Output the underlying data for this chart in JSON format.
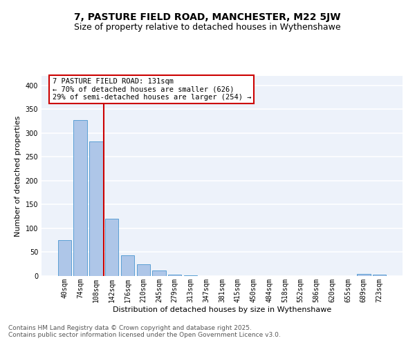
{
  "title": "7, PASTURE FIELD ROAD, MANCHESTER, M22 5JW",
  "subtitle": "Size of property relative to detached houses in Wythenshawe",
  "xlabel": "Distribution of detached houses by size in Wythenshawe",
  "ylabel": "Number of detached properties",
  "categories": [
    "40sqm",
    "74sqm",
    "108sqm",
    "142sqm",
    "176sqm",
    "210sqm",
    "245sqm",
    "279sqm",
    "313sqm",
    "347sqm",
    "381sqm",
    "415sqm",
    "450sqm",
    "484sqm",
    "518sqm",
    "552sqm",
    "586sqm",
    "620sqm",
    "655sqm",
    "689sqm",
    "723sqm"
  ],
  "values": [
    75,
    328,
    283,
    120,
    43,
    24,
    12,
    3,
    1,
    0,
    0,
    0,
    0,
    0,
    0,
    0,
    0,
    0,
    0,
    5,
    3
  ],
  "bar_color": "#aec6e8",
  "bar_edge_color": "#5a9fd4",
  "vline_x": 2.5,
  "vline_color": "#cc0000",
  "annotation_text": "7 PASTURE FIELD ROAD: 131sqm\n← 70% of detached houses are smaller (626)\n29% of semi-detached houses are larger (254) →",
  "annotation_box_color": "#cc0000",
  "ylim": [
    0,
    420
  ],
  "yticks": [
    0,
    50,
    100,
    150,
    200,
    250,
    300,
    350,
    400
  ],
  "background_color": "#edf2fa",
  "footer": "Contains HM Land Registry data © Crown copyright and database right 2025.\nContains public sector information licensed under the Open Government Licence v3.0.",
  "title_fontsize": 10,
  "subtitle_fontsize": 9,
  "xlabel_fontsize": 8,
  "ylabel_fontsize": 8,
  "tick_fontsize": 7,
  "annotation_fontsize": 7.5,
  "footer_fontsize": 6.5
}
